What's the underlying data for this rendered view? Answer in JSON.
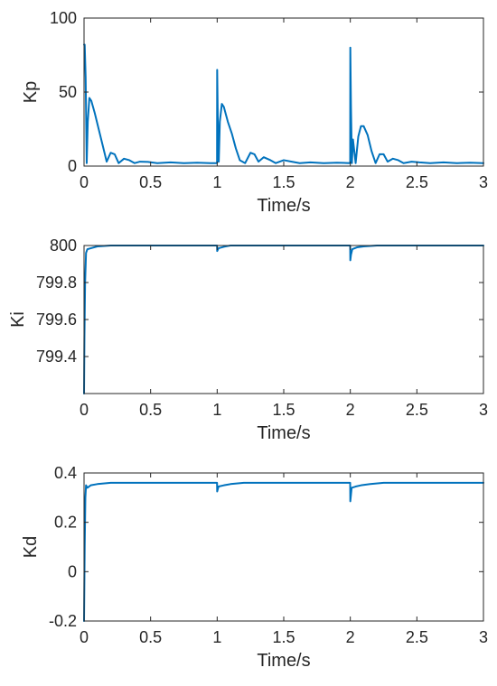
{
  "chart_data": [
    {
      "type": "line",
      "title": "",
      "xlabel": "Time/s",
      "ylabel": "Kp",
      "xlim": [
        0,
        3
      ],
      "ylim": [
        0,
        100
      ],
      "xticks": [
        0,
        0.5,
        1,
        1.5,
        2,
        2.5,
        3
      ],
      "xtick_labels": [
        "0",
        "0.5",
        "1",
        "1.5",
        "2",
        "2.5",
        "3"
      ],
      "yticks": [
        0,
        50,
        100
      ],
      "ytick_labels": [
        "0",
        "50",
        "100"
      ],
      "grid": false,
      "series": [
        {
          "color": "#0072BD",
          "points": [
            [
              0,
              82
            ],
            [
              0.005,
              82
            ],
            [
              0.012,
              60
            ],
            [
              0.02,
              2
            ],
            [
              0.028,
              30
            ],
            [
              0.04,
              46
            ],
            [
              0.055,
              44
            ],
            [
              0.08,
              36
            ],
            [
              0.11,
              25
            ],
            [
              0.14,
              14
            ],
            [
              0.17,
              3
            ],
            [
              0.2,
              9
            ],
            [
              0.23,
              8
            ],
            [
              0.26,
              2
            ],
            [
              0.3,
              5
            ],
            [
              0.34,
              4
            ],
            [
              0.38,
              2
            ],
            [
              0.42,
              3
            ],
            [
              0.48,
              2.8
            ],
            [
              0.55,
              2
            ],
            [
              0.65,
              2.5
            ],
            [
              0.75,
              2
            ],
            [
              0.85,
              2.3
            ],
            [
              0.95,
              2
            ],
            [
              0.999,
              2
            ],
            [
              1.0,
              65
            ],
            [
              1.005,
              30
            ],
            [
              1.012,
              3
            ],
            [
              1.02,
              30
            ],
            [
              1.035,
              42
            ],
            [
              1.05,
              40
            ],
            [
              1.08,
              30
            ],
            [
              1.11,
              22
            ],
            [
              1.14,
              12
            ],
            [
              1.17,
              4
            ],
            [
              1.21,
              2
            ],
            [
              1.25,
              9
            ],
            [
              1.28,
              8
            ],
            [
              1.31,
              3
            ],
            [
              1.35,
              6
            ],
            [
              1.4,
              4
            ],
            [
              1.44,
              2
            ],
            [
              1.5,
              4
            ],
            [
              1.56,
              3
            ],
            [
              1.62,
              2
            ],
            [
              1.7,
              2.5
            ],
            [
              1.8,
              2
            ],
            [
              1.9,
              2.3
            ],
            [
              1.999,
              2
            ],
            [
              2.0,
              80
            ],
            [
              2.005,
              40
            ],
            [
              2.012,
              2
            ],
            [
              2.02,
              18
            ],
            [
              2.03,
              10
            ],
            [
              2.04,
              2
            ],
            [
              2.06,
              20
            ],
            [
              2.08,
              27
            ],
            [
              2.1,
              27
            ],
            [
              2.13,
              21
            ],
            [
              2.16,
              10
            ],
            [
              2.19,
              2
            ],
            [
              2.22,
              8
            ],
            [
              2.25,
              8
            ],
            [
              2.28,
              3
            ],
            [
              2.32,
              5
            ],
            [
              2.36,
              4
            ],
            [
              2.4,
              2
            ],
            [
              2.46,
              3
            ],
            [
              2.52,
              2.5
            ],
            [
              2.6,
              2
            ],
            [
              2.7,
              2.5
            ],
            [
              2.8,
              2
            ],
            [
              2.9,
              2.3
            ],
            [
              3.0,
              2
            ]
          ]
        }
      ]
    },
    {
      "type": "line",
      "title": "",
      "xlabel": "Time/s",
      "ylabel": "Ki",
      "xlim": [
        0,
        3
      ],
      "ylim": [
        799.2,
        800
      ],
      "xticks": [
        0,
        0.5,
        1,
        1.5,
        2,
        2.5,
        3
      ],
      "xtick_labels": [
        "0",
        "0.5",
        "1",
        "1.5",
        "2",
        "2.5",
        "3"
      ],
      "yticks": [
        799.4,
        799.6,
        799.8,
        800
      ],
      "ytick_labels": [
        "799.4",
        "799.6",
        "799.8",
        "800"
      ],
      "grid": false,
      "series": [
        {
          "color": "#0072BD",
          "points": [
            [
              0,
              799.2
            ],
            [
              0.003,
              799.5
            ],
            [
              0.008,
              799.8
            ],
            [
              0.015,
              799.96
            ],
            [
              0.025,
              799.98
            ],
            [
              0.05,
              799.985
            ],
            [
              0.1,
              799.995
            ],
            [
              0.2,
              800
            ],
            [
              0.999,
              800
            ],
            [
              1.0,
              799.97
            ],
            [
              1.01,
              799.985
            ],
            [
              1.05,
              799.993
            ],
            [
              1.1,
              800
            ],
            [
              1.999,
              800
            ],
            [
              2.0,
              799.92
            ],
            [
              2.005,
              799.95
            ],
            [
              2.015,
              799.98
            ],
            [
              2.05,
              799.99
            ],
            [
              2.1,
              799.995
            ],
            [
              2.2,
              800
            ],
            [
              3.0,
              800
            ]
          ]
        }
      ]
    },
    {
      "type": "line",
      "title": "",
      "xlabel": "Time/s",
      "ylabel": "Kd",
      "xlim": [
        0,
        3
      ],
      "ylim": [
        -0.2,
        0.4
      ],
      "xticks": [
        0,
        0.5,
        1,
        1.5,
        2,
        2.5,
        3
      ],
      "xtick_labels": [
        "0",
        "0.5",
        "1",
        "1.5",
        "2",
        "2.5",
        "3"
      ],
      "yticks": [
        -0.2,
        0,
        0.2,
        0.4
      ],
      "ytick_labels": [
        "-0.2",
        "0",
        "0.2",
        "0.4"
      ],
      "grid": false,
      "series": [
        {
          "color": "#0072BD",
          "points": [
            [
              0,
              -0.2
            ],
            [
              0.005,
              0.1
            ],
            [
              0.01,
              0.3
            ],
            [
              0.015,
              0.35
            ],
            [
              0.025,
              0.34
            ],
            [
              0.05,
              0.35
            ],
            [
              0.1,
              0.355
            ],
            [
              0.2,
              0.36
            ],
            [
              0.999,
              0.36
            ],
            [
              1.0,
              0.325
            ],
            [
              1.01,
              0.345
            ],
            [
              1.05,
              0.35
            ],
            [
              1.1,
              0.355
            ],
            [
              1.2,
              0.36
            ],
            [
              1.999,
              0.36
            ],
            [
              2.0,
              0.285
            ],
            [
              2.01,
              0.34
            ],
            [
              2.04,
              0.345
            ],
            [
              2.08,
              0.35
            ],
            [
              2.15,
              0.355
            ],
            [
              2.25,
              0.36
            ],
            [
              3.0,
              0.36
            ]
          ]
        }
      ]
    }
  ]
}
